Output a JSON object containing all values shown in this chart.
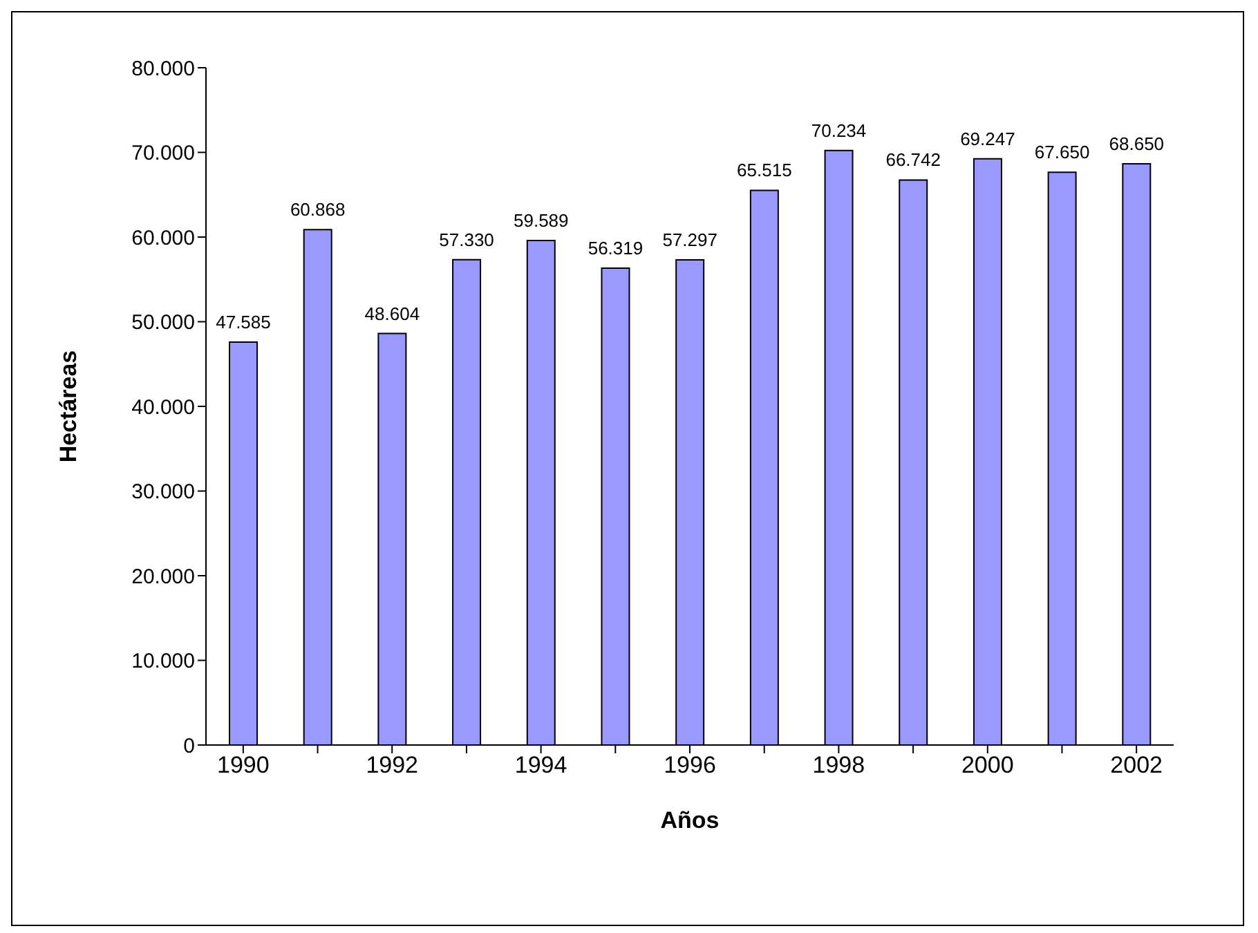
{
  "chart_data": {
    "type": "bar",
    "xlabel": "Años",
    "ylabel": "Hectáreas",
    "categories": [
      "1990",
      null,
      "1992",
      null,
      "1994",
      null,
      "1996",
      null,
      "1998",
      null,
      "2000",
      null,
      "2002"
    ],
    "values": [
      47585,
      60868,
      48604,
      57330,
      59589,
      56319,
      57297,
      65515,
      70234,
      66742,
      69247,
      67650,
      68650
    ],
    "value_labels": [
      "47.585",
      "60.868",
      "48.604",
      "57.330",
      "59.589",
      "56.319",
      "57.297",
      "65.515",
      "70.234",
      "66.742",
      "69.247",
      "67.650",
      "68.650"
    ],
    "color": "#9999ff",
    "ylim": [
      0,
      80000
    ],
    "yticks": [
      0,
      {
        "value": 10000,
        "label": "10.000"
      },
      {
        "value": 20000,
        "label": "20.000"
      },
      {
        "value": 30000,
        "label": "30.000"
      },
      {
        "value": 40000,
        "label": "40.000"
      },
      {
        "value": 50000,
        "label": "50.000"
      },
      {
        "value": 60000,
        "label": "60.000"
      },
      {
        "value": 70000,
        "label": "70.000"
      },
      {
        "value": 80000,
        "label": "80.000"
      }
    ],
    "grid": false,
    "legend": false
  }
}
